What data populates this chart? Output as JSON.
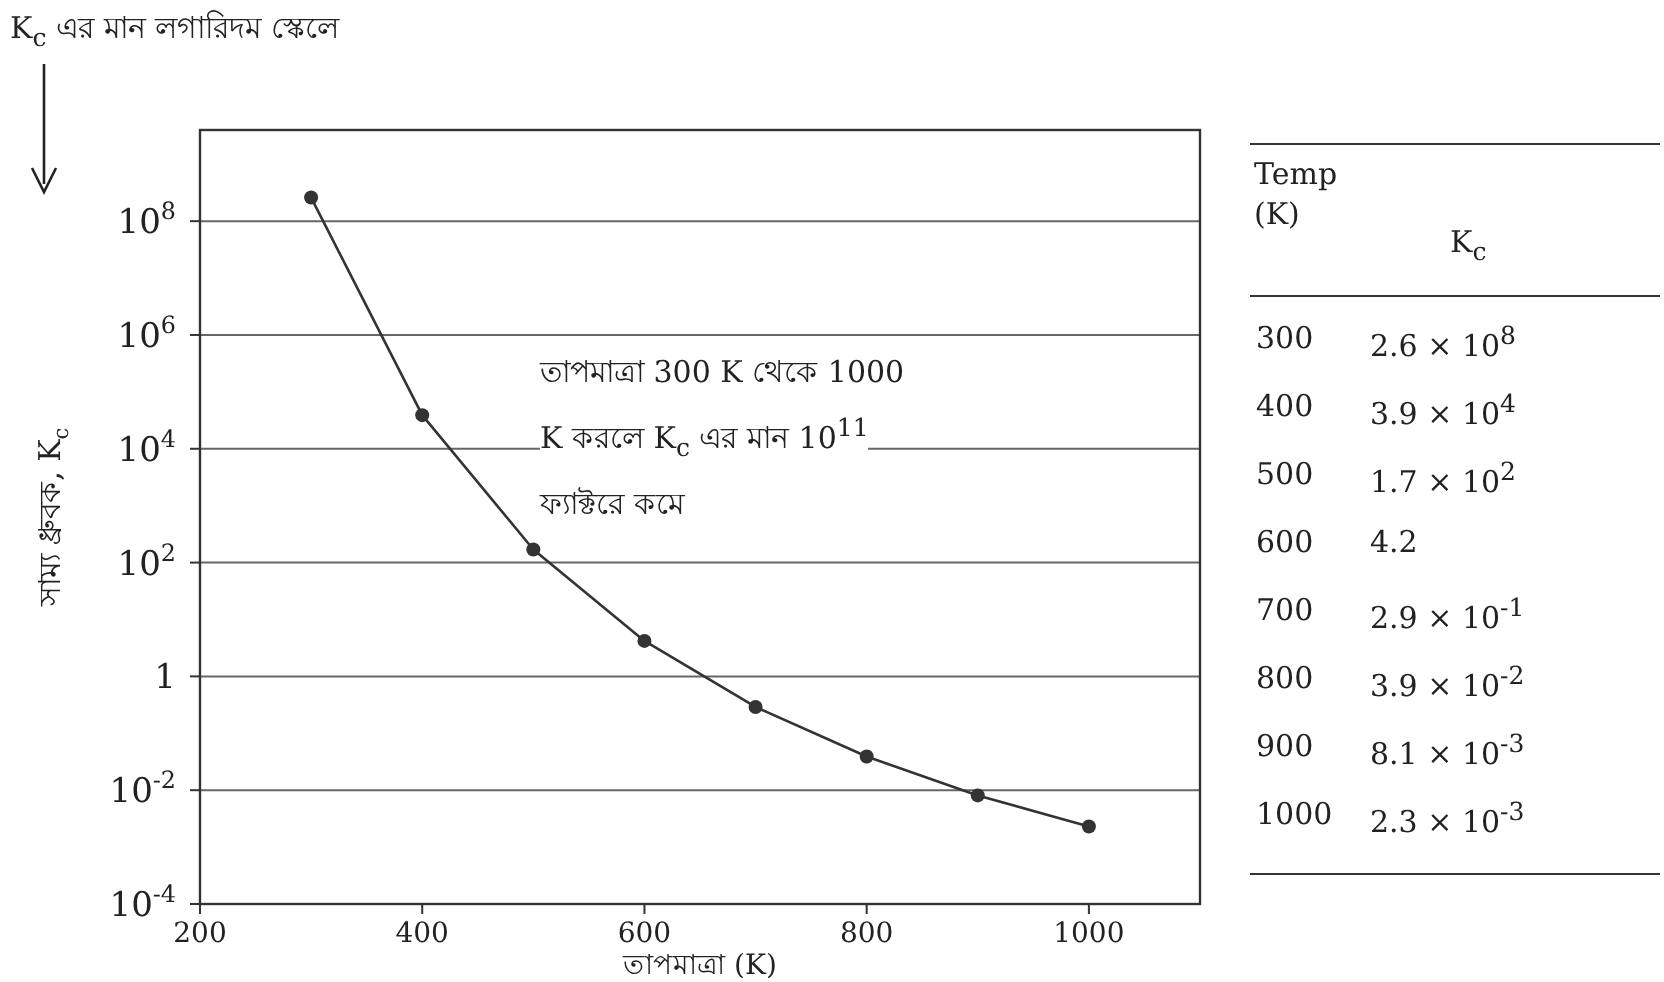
{
  "chart_data": {
    "type": "line",
    "xlabel": "তাপমাত্রা (K)",
    "ylabel": "সাম্য ধ্রুবক, K$_{c}$",
    "x": [
      300,
      400,
      500,
      600,
      700,
      800,
      900,
      1000
    ],
    "values": [
      260000000,
      39000,
      170,
      4.2,
      0.29,
      0.039,
      0.0081,
      0.0023
    ],
    "color": "#333333",
    "marker": "circle",
    "line_style": "solid",
    "log": "y",
    "grid": "y",
    "xlim": [
      200,
      1100
    ],
    "ylim": [
      0.0001,
      4000000000
    ],
    "xticks": [
      200,
      400,
      600,
      800,
      1000
    ],
    "yticks": [
      {
        "value": 100000000,
        "label": "10$^{8}$"
      },
      {
        "value": 1000000,
        "label": "10$^{6}$"
      },
      {
        "value": 10000,
        "label": "10$^{4}$"
      },
      {
        "value": 100,
        "label": "10$^{2}$"
      },
      1,
      {
        "value": 0.01,
        "label": "10$^{-2}$"
      },
      {
        "value": 0.0001,
        "label": "10$^{-4}$"
      }
    ],
    "annotations": [
      "K$_{c}$ এর মান লগারিদম স্কেলে",
      "তাপমাত্রা 300 K থেকে 1000 K করলে K$_{c}$ এর মান 10$^{11}$ ফ্যাক্টরে কমে",
      "Temp (K)",
      "K$_{c}$",
      "300",
      "2.6 × 10$^{8}$",
      "400",
      "3.9 × 10$^{4}$",
      "500",
      "1.7 × 10$^{2}$",
      "600",
      "4.2",
      "700",
      "2.9 × 10$^{-1}$",
      "800",
      "3.9 × 10$^{-2}$",
      "900",
      "8.1 × 10$^{-3}$",
      "1000",
      "2.3 × 10$^{-3}$"
    ]
  }
}
